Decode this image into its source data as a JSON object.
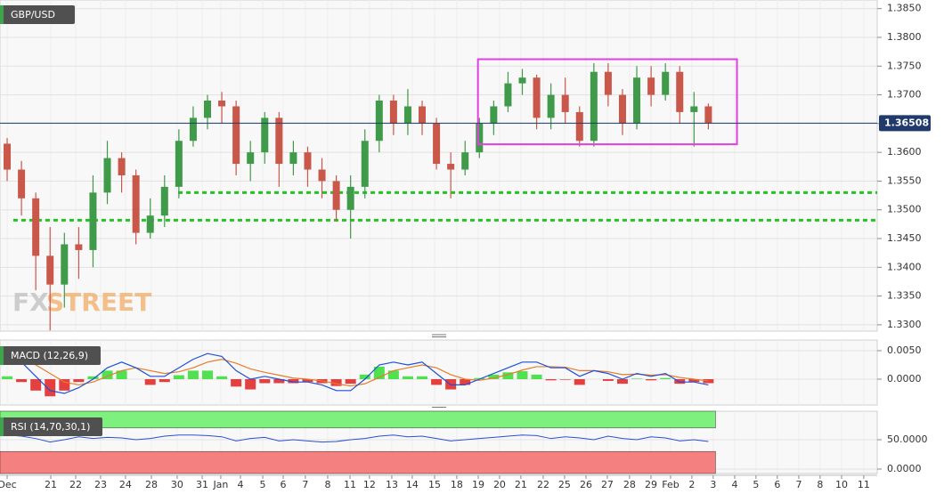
{
  "chart_data": [
    {
      "type": "candlestick",
      "title": "GBP/USD",
      "watermark": {
        "left": "FX",
        "right": "STREET"
      },
      "open": [
        1.3615,
        1.357,
        1.352,
        1.342,
        1.337,
        1.344,
        1.343,
        1.353,
        1.359,
        1.356,
        1.346,
        1.349,
        1.354,
        1.362,
        1.366,
        1.369,
        1.368,
        1.358,
        1.36,
        1.366,
        1.358,
        1.36,
        1.357,
        1.355,
        1.35,
        1.354,
        1.362,
        1.369,
        1.365,
        1.368,
        1.365,
        1.358,
        1.357,
        1.36,
        1.365,
        1.368,
        1.372,
        1.373,
        1.366,
        1.37,
        1.367,
        1.362,
        1.374,
        1.37,
        1.365,
        1.373,
        1.37,
        1.374,
        1.367,
        1.368
      ],
      "high": [
        1.3625,
        1.3585,
        1.353,
        1.347,
        1.346,
        1.347,
        1.356,
        1.362,
        1.36,
        1.357,
        1.352,
        1.356,
        1.364,
        1.368,
        1.37,
        1.3705,
        1.369,
        1.362,
        1.367,
        1.367,
        1.362,
        1.361,
        1.359,
        1.356,
        1.356,
        1.364,
        1.37,
        1.37,
        1.371,
        1.369,
        1.366,
        1.36,
        1.362,
        1.366,
        1.369,
        1.374,
        1.3745,
        1.3735,
        1.372,
        1.373,
        1.368,
        1.3755,
        1.3755,
        1.371,
        1.375,
        1.375,
        1.3755,
        1.375,
        1.3705,
        1.3685
      ],
      "low": [
        1.355,
        1.349,
        1.336,
        1.329,
        1.333,
        1.338,
        1.34,
        1.351,
        1.353,
        1.344,
        1.345,
        1.347,
        1.352,
        1.361,
        1.364,
        1.365,
        1.356,
        1.355,
        1.358,
        1.354,
        1.356,
        1.354,
        1.352,
        1.348,
        1.345,
        1.352,
        1.36,
        1.363,
        1.363,
        1.363,
        1.357,
        1.352,
        1.356,
        1.359,
        1.363,
        1.367,
        1.37,
        1.364,
        1.364,
        1.365,
        1.361,
        1.361,
        1.368,
        1.363,
        1.364,
        1.368,
        1.369,
        1.365,
        1.361,
        1.364
      ],
      "close": [
        1.357,
        1.352,
        1.342,
        1.337,
        1.344,
        1.343,
        1.353,
        1.359,
        1.356,
        1.346,
        1.349,
        1.354,
        1.362,
        1.366,
        1.369,
        1.368,
        1.358,
        1.36,
        1.366,
        1.358,
        1.36,
        1.357,
        1.355,
        1.35,
        1.354,
        1.362,
        1.369,
        1.365,
        1.368,
        1.365,
        1.358,
        1.357,
        1.36,
        1.365,
        1.368,
        1.372,
        1.373,
        1.366,
        1.37,
        1.367,
        1.362,
        1.374,
        1.37,
        1.365,
        1.373,
        1.37,
        1.374,
        1.367,
        1.368,
        1.3651
      ],
      "up_color": "#3f9a4a",
      "down_color": "#c9574a",
      "xlim": [
        -0.5,
        60.8
      ],
      "xticks": [
        {
          "value": 0.0,
          "label": "Dec"
        },
        {
          "value": 3.05,
          "label": "21"
        },
        {
          "value": 4.79,
          "label": "22"
        },
        {
          "value": 6.53,
          "label": "23"
        },
        {
          "value": 8.27,
          "label": "24"
        },
        {
          "value": 10.08,
          "label": "28"
        },
        {
          "value": 11.88,
          "label": "30"
        },
        {
          "value": 13.63,
          "label": "31"
        },
        {
          "value": 14.93,
          "label": "Jan"
        },
        {
          "value": 16.3,
          "label": "4"
        },
        {
          "value": 17.86,
          "label": "5"
        },
        {
          "value": 19.29,
          "label": "6"
        },
        {
          "value": 20.84,
          "label": "7"
        },
        {
          "value": 22.4,
          "label": "8"
        },
        {
          "value": 23.96,
          "label": "11"
        },
        {
          "value": 25.32,
          "label": "12"
        },
        {
          "value": 26.88,
          "label": "13"
        },
        {
          "value": 28.31,
          "label": "14"
        },
        {
          "value": 29.87,
          "label": "15"
        },
        {
          "value": 31.42,
          "label": "18"
        },
        {
          "value": 32.92,
          "label": "19"
        },
        {
          "value": 34.41,
          "label": "20"
        },
        {
          "value": 35.9,
          "label": "21"
        },
        {
          "value": 37.46,
          "label": "22"
        },
        {
          "value": 38.95,
          "label": "25"
        },
        {
          "value": 40.45,
          "label": "26"
        },
        {
          "value": 41.94,
          "label": "27"
        },
        {
          "value": 43.49,
          "label": "28"
        },
        {
          "value": 44.99,
          "label": "29"
        },
        {
          "value": 46.36,
          "label": "Feb"
        },
        {
          "value": 47.85,
          "label": "2"
        },
        {
          "value": 49.34,
          "label": "3"
        },
        {
          "value": 50.84,
          "label": "4"
        },
        {
          "value": 52.33,
          "label": "5"
        },
        {
          "value": 53.82,
          "label": "6"
        },
        {
          "value": 55.32,
          "label": "7"
        },
        {
          "value": 56.81,
          "label": "8"
        },
        {
          "value": 58.31,
          "label": "10"
        },
        {
          "value": 59.86,
          "label": "11"
        }
      ],
      "ylim": [
        1.3289,
        1.3865
      ],
      "yticks": [
        {
          "value": 1.385,
          "label": "1.3850"
        },
        {
          "value": 1.38,
          "label": "1.3800"
        },
        {
          "value": 1.375,
          "label": "1.3750"
        },
        {
          "value": 1.37,
          "label": "1.3700"
        },
        {
          "value": 1.365,
          "label": "1.3650"
        },
        {
          "value": 1.36,
          "label": "1.3600"
        },
        {
          "value": 1.355,
          "label": "1.3550"
        },
        {
          "value": 1.35,
          "label": "1.3500"
        },
        {
          "value": 1.345,
          "label": "1.3450"
        },
        {
          "value": 1.34,
          "label": "1.3400"
        },
        {
          "value": 1.335,
          "label": "1.3350"
        },
        {
          "value": 1.33,
          "label": "1.3300"
        }
      ],
      "grid": true,
      "last": {
        "value": 1.36508,
        "label": "1.36508",
        "color": "#1f3a6b"
      },
      "levels": [
        {
          "value": 1.353,
          "start": 11.95,
          "color": "#22c422"
        },
        {
          "value": 1.3482,
          "start": 0.43,
          "color": "#22c422"
        }
      ],
      "box": {
        "x": [
          32.9,
          51.0
        ],
        "y": [
          1.3614,
          1.3762
        ],
        "color": "#e040e0"
      }
    },
    {
      "type": "macd",
      "title": "MACD (12,26,9)",
      "macd": {
        "color": "#1e4fd8",
        "values": [
          0.0045,
          0.003,
          0.0005,
          -0.002,
          -0.0025,
          -0.0015,
          0,
          0.002,
          0.003,
          0.002,
          0.0005,
          0.0005,
          0.002,
          0.0035,
          0.0045,
          0.004,
          0.0015,
          0,
          0.0005,
          0,
          -0.0005,
          -0.0005,
          -0.001,
          -0.002,
          -0.002,
          0,
          0.0025,
          0.003,
          0.0025,
          0.003,
          0.001,
          -0.001,
          -0.001,
          0,
          0.001,
          0.002,
          0.003,
          0.003,
          0.002,
          0.002,
          0.0005,
          0.0015,
          0.001,
          0,
          0.001,
          0.0005,
          0.001,
          -0.0005,
          -0.0005,
          -0.001
        ]
      },
      "signal": {
        "color": "#e87b2a",
        "values": [
          0.004,
          0.0035,
          0.0025,
          0.001,
          -0.0005,
          -0.001,
          -0.0005,
          0.0005,
          0.0015,
          0.002,
          0.0015,
          0.001,
          0.0013,
          0.002,
          0.003,
          0.0035,
          0.0028,
          0.0018,
          0.0012,
          0.0007,
          0.0002,
          0,
          -0.0003,
          -0.0008,
          -0.0012,
          -0.0008,
          0.0003,
          0.0015,
          0.002,
          0.0025,
          0.002,
          0.0008,
          0,
          -0.0002,
          0.0002,
          0.0008,
          0.0016,
          0.0022,
          0.0022,
          0.0021,
          0.0015,
          0.0015,
          0.0013,
          0.0008,
          0.0009,
          0.0007,
          0.0008,
          0.0003,
          0,
          -0.0003
        ]
      },
      "histogram": {
        "pos_color": "#33dd33",
        "neg_color": "#e02020",
        "values": [
          0.0005,
          -0.0005,
          -0.002,
          -0.003,
          -0.002,
          -0.0005,
          0.0005,
          0.0015,
          0.0015,
          0,
          -0.001,
          -0.0005,
          0.0007,
          0.0015,
          0.0015,
          0.0005,
          -0.0013,
          -0.0018,
          -0.0007,
          -0.0007,
          -0.0007,
          -0.0005,
          -0.0007,
          -0.0012,
          -0.0008,
          0.0008,
          0.0022,
          0.0015,
          0.0005,
          0.0005,
          -0.001,
          -0.0018,
          -0.001,
          0.0002,
          0.0008,
          0.0012,
          0.0014,
          0.0008,
          -0.0002,
          -0.0001,
          -0.001,
          0,
          -0.0003,
          -0.0008,
          0.0001,
          -0.0002,
          0.0002,
          -0.0008,
          -0.0005,
          -0.0007
        ]
      },
      "ylim": [
        -0.00453,
        0.006875
      ],
      "yticks": [
        {
          "value": 0.005,
          "label": "0.0050"
        },
        {
          "value": 0,
          "label": "0.0000"
        }
      ]
    },
    {
      "type": "line",
      "title": "RSI (14,70,30,1)",
      "color": "#2a4fd0",
      "values": [
        58,
        56,
        52,
        46,
        50,
        55,
        52,
        54,
        53,
        50,
        52,
        56,
        58,
        58,
        57,
        55,
        48,
        52,
        54,
        48,
        50,
        48,
        46,
        47,
        50,
        52,
        56,
        58,
        55,
        56,
        52,
        48,
        50,
        52,
        54,
        56,
        58,
        57,
        52,
        55,
        53,
        50,
        56,
        52,
        50,
        55,
        53,
        48,
        50,
        47
      ],
      "overbought": 70,
      "oversold": 30,
      "overbought_color": "#7ef07e",
      "oversold_color": "#f58080",
      "ylim": [
        -7.6,
        98.5
      ],
      "yticks": [
        {
          "value": 50,
          "label": "50.0000"
        },
        {
          "value": 0,
          "label": "0.0000"
        }
      ]
    }
  ]
}
